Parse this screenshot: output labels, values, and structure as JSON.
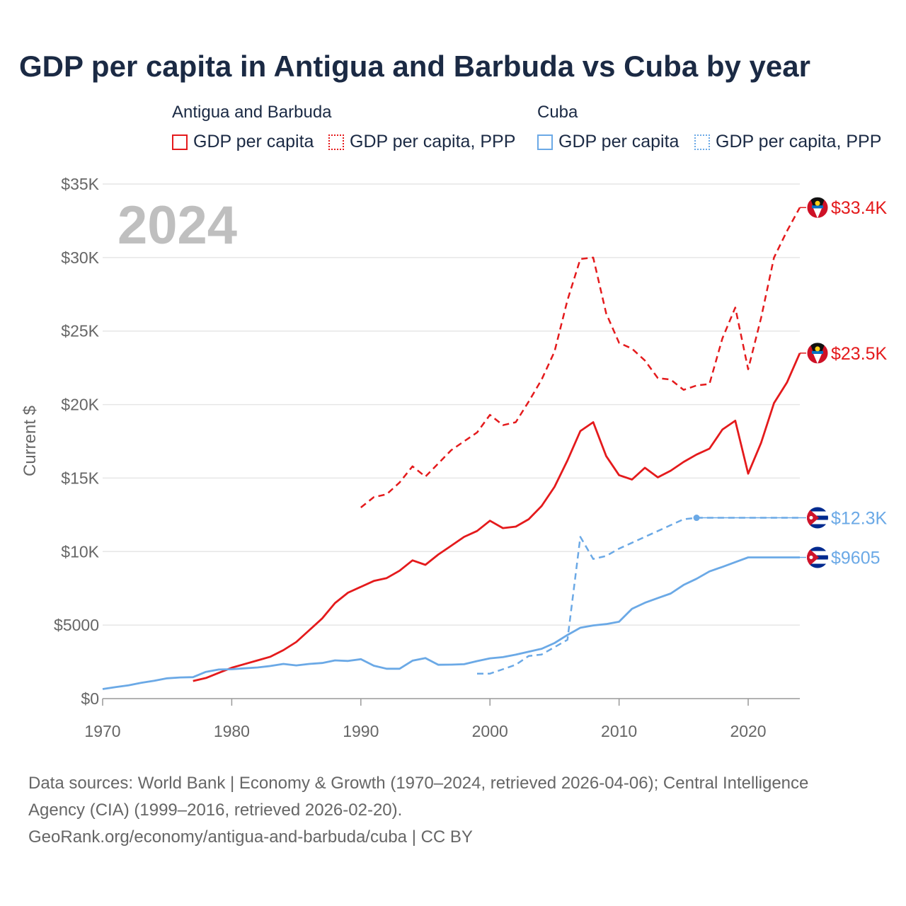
{
  "chart_data": {
    "type": "line",
    "title": "GDP per capita in Antigua and Barbuda vs Cuba by year",
    "ylabel": "Current $",
    "xlabel": "",
    "year_label": "2024",
    "xlim": [
      1970,
      2024
    ],
    "ylim": [
      0,
      35000
    ],
    "x_ticks": [
      1970,
      1980,
      1990,
      2000,
      2010,
      2020
    ],
    "x_tick_labels": [
      "1970",
      "1980",
      "1990",
      "2000",
      "2010",
      "2020"
    ],
    "y_ticks": [
      0,
      5000,
      10000,
      15000,
      20000,
      25000,
      30000,
      35000
    ],
    "y_tick_labels": [
      "$0",
      "$5000",
      "$10K",
      "$15K",
      "$20K",
      "$25K",
      "$30K",
      "$35K"
    ],
    "grid": true,
    "legend": {
      "groups": [
        {
          "title": "Antigua and Barbuda",
          "items": [
            "GDP per capita",
            "GDP per capita, PPP"
          ]
        },
        {
          "title": "Cuba",
          "items": [
            "GDP per capita",
            "GDP per capita, PPP"
          ]
        }
      ]
    },
    "series": [
      {
        "name": "Antigua and Barbuda GDP per capita",
        "color": "#e41a1c",
        "style": "solid",
        "x": [
          1977,
          1978,
          1979,
          1980,
          1981,
          1982,
          1983,
          1984,
          1985,
          1986,
          1987,
          1988,
          1989,
          1990,
          1991,
          1992,
          1993,
          1994,
          1995,
          1996,
          1997,
          1998,
          1999,
          2000,
          2001,
          2002,
          2003,
          2004,
          2005,
          2006,
          2007,
          2008,
          2009,
          2010,
          2011,
          2012,
          2013,
          2014,
          2015,
          2016,
          2017,
          2018,
          2019,
          2020,
          2021,
          2022,
          2023,
          2024
        ],
        "values": [
          1200,
          1400,
          1750,
          2100,
          2350,
          2600,
          2850,
          3300,
          3850,
          4650,
          5450,
          6500,
          7200,
          7600,
          8000,
          8200,
          8700,
          9400,
          9100,
          9800,
          10400,
          11000,
          11400,
          12100,
          11600,
          11700,
          12200,
          13100,
          14400,
          16200,
          18200,
          18800,
          16500,
          15200,
          14900,
          15700,
          15050,
          15500,
          16100,
          16600,
          17000,
          18300,
          18900,
          15300,
          17400,
          20100,
          21500,
          23500
        ],
        "end_label": "$23.5K"
      },
      {
        "name": "Antigua and Barbuda GDP per capita, PPP",
        "color": "#e41a1c",
        "style": "dashed",
        "x": [
          1990,
          1991,
          1992,
          1993,
          1994,
          1995,
          1996,
          1997,
          1998,
          1999,
          2000,
          2001,
          2002,
          2003,
          2004,
          2005,
          2006,
          2007,
          2008,
          2009,
          2010,
          2011,
          2012,
          2013,
          2014,
          2015,
          2016,
          2017,
          2018,
          2019,
          2020,
          2021,
          2022,
          2023,
          2024
        ],
        "values": [
          13000,
          13700,
          13900,
          14700,
          15800,
          15100,
          16000,
          16900,
          17500,
          18100,
          19300,
          18600,
          18800,
          20200,
          21700,
          23600,
          27100,
          29900,
          30000,
          26200,
          24200,
          23800,
          23000,
          21800,
          21700,
          21000,
          21300,
          21400,
          24500,
          26600,
          22400,
          25900,
          30000,
          31800,
          33400
        ],
        "end_label": "$33.4K"
      },
      {
        "name": "Cuba GDP per capita",
        "color": "#6ba9e6",
        "style": "solid",
        "x": [
          1970,
          1971,
          1972,
          1973,
          1974,
          1975,
          1976,
          1977,
          1978,
          1979,
          1980,
          1981,
          1982,
          1983,
          1984,
          1985,
          1986,
          1987,
          1988,
          1989,
          1990,
          1991,
          1992,
          1993,
          1994,
          1995,
          1996,
          1997,
          1998,
          1999,
          2000,
          2001,
          2002,
          2003,
          2004,
          2005,
          2006,
          2007,
          2008,
          2009,
          2010,
          2011,
          2012,
          2013,
          2014,
          2015,
          2016,
          2017,
          2018,
          2019,
          2020,
          2024
        ],
        "values": [
          650,
          780,
          900,
          1080,
          1220,
          1380,
          1440,
          1460,
          1820,
          1980,
          2000,
          2060,
          2120,
          2220,
          2360,
          2260,
          2360,
          2420,
          2600,
          2560,
          2680,
          2240,
          2030,
          2030,
          2580,
          2760,
          2300,
          2310,
          2340,
          2550,
          2740,
          2820,
          2990,
          3190,
          3390,
          3780,
          4330,
          4820,
          4980,
          5070,
          5230,
          6110,
          6520,
          6840,
          7150,
          7730,
          8150,
          8650,
          8960,
          9280,
          9605,
          9605
        ],
        "end_label": "$9605"
      },
      {
        "name": "Cuba GDP per capita, PPP",
        "color": "#6ba9e6",
        "style": "dashed",
        "x": [
          1999,
          2000,
          2001,
          2002,
          2003,
          2004,
          2005,
          2006,
          2007,
          2008,
          2009,
          2010,
          2011,
          2012,
          2013,
          2014,
          2015,
          2016,
          2024
        ],
        "values": [
          1700,
          1700,
          2000,
          2300,
          2900,
          3000,
          3500,
          4000,
          11000,
          9500,
          9700,
          10200,
          10600,
          11000,
          11400,
          11800,
          12200,
          12300,
          12300
        ],
        "end_label": "$12.3K"
      }
    ]
  },
  "footer": {
    "line1": "Data sources: World Bank | Economy & Growth (1970–2024, retrieved 2026-04-06); Central Intelligence",
    "line2": "Agency (CIA) (1999–2016, retrieved 2026-02-20).",
    "line3": "GeoRank.org/economy/antigua-and-barbuda/cuba | CC BY"
  },
  "colors": {
    "antigua": "#e41a1c",
    "cuba": "#6ba9e6",
    "title": "#1b2a44",
    "axis_text": "#666666",
    "grid": "#e6e6e6",
    "year_watermark": "#bfbfbf"
  },
  "icons": {
    "antigua_flag": "antigua-flag-icon",
    "cuba_flag": "cuba-flag-icon"
  }
}
